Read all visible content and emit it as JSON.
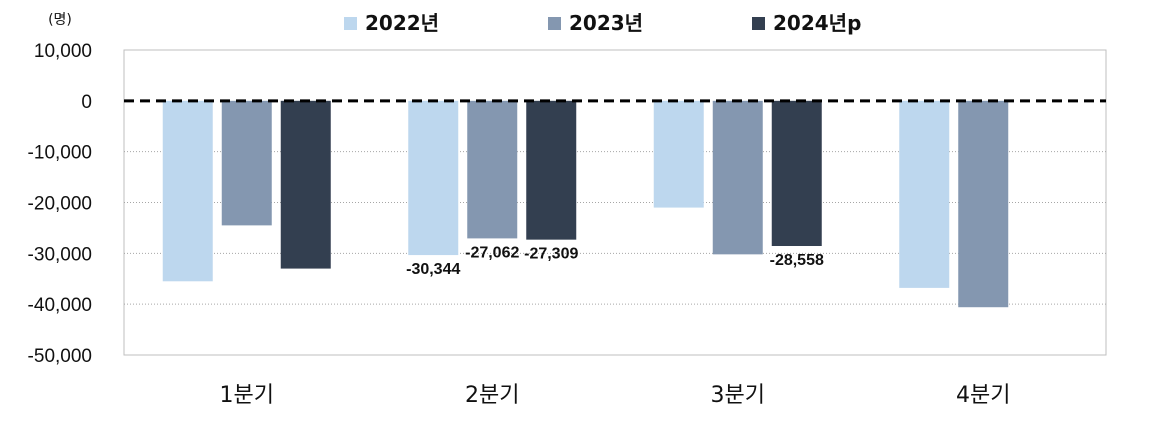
{
  "chart_data": {
    "type": "bar",
    "unit_label": "(명)",
    "categories": [
      "1분기",
      "2분기",
      "3분기",
      "4분기"
    ],
    "ylim": [
      -50000,
      10000
    ],
    "yticks": [
      "10,000",
      "0",
      "-10,000",
      "-20,000",
      "-30,000",
      "-40,000",
      "-50,000"
    ],
    "grid": "dotted-horizontal",
    "legend_position": "top",
    "zero_line": "dashed",
    "series": [
      {
        "name": "2022년",
        "color": "#bdd7ee",
        "values": [
          -35500,
          -30344,
          -21000,
          -36800
        ],
        "labels": [
          null,
          "-30,344",
          null,
          null
        ]
      },
      {
        "name": "2023년",
        "color": "#8497b0",
        "values": [
          -24500,
          -27062,
          -30200,
          -40600
        ],
        "labels": [
          null,
          "-27,062",
          null,
          null
        ]
      },
      {
        "name": "2024년p",
        "color": "#333f50",
        "values": [
          -33000,
          -27309,
          -28558,
          null
        ],
        "labels": [
          null,
          "-27,309",
          "-28,558",
          null
        ]
      }
    ]
  }
}
